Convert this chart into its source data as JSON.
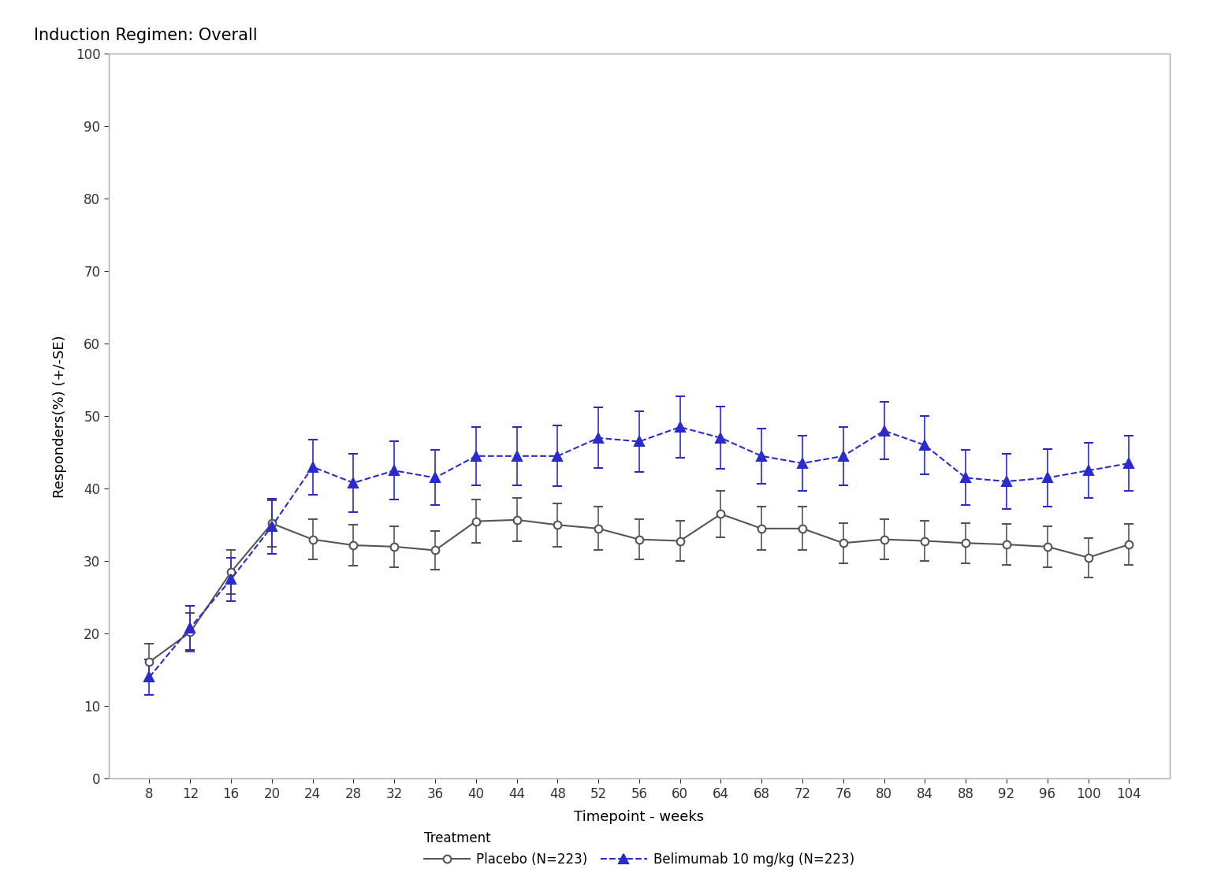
{
  "title": "Induction Regimen: Overall",
  "xlabel": "Timepoint - weeks",
  "ylabel": "Responders(%) (+/-SE)",
  "legend_title": "Treatment",
  "xlim": [
    4,
    108
  ],
  "ylim": [
    0,
    100
  ],
  "yticks": [
    0,
    10,
    20,
    30,
    40,
    50,
    60,
    70,
    80,
    90,
    100
  ],
  "xticks": [
    8,
    12,
    16,
    20,
    24,
    28,
    32,
    36,
    40,
    44,
    48,
    52,
    56,
    60,
    64,
    68,
    72,
    76,
    80,
    84,
    88,
    92,
    96,
    100,
    104
  ],
  "placebo": {
    "label": "Placebo (N=223)",
    "color": "#555555",
    "marker": "o",
    "linestyle": "-",
    "weeks": [
      8,
      12,
      16,
      20,
      24,
      28,
      32,
      36,
      40,
      44,
      48,
      52,
      56,
      60,
      64,
      68,
      72,
      76,
      80,
      84,
      88,
      92,
      96,
      100,
      104
    ],
    "values": [
      16.1,
      20.2,
      28.5,
      35.2,
      33.0,
      32.2,
      32.0,
      31.5,
      35.5,
      35.7,
      35.0,
      34.5,
      33.0,
      32.8,
      36.5,
      34.5,
      34.5,
      32.5,
      33.0,
      32.8,
      32.5,
      32.3,
      32.0,
      30.5,
      32.3
    ],
    "se": [
      2.5,
      2.7,
      3.0,
      3.2,
      2.8,
      2.8,
      2.8,
      2.7,
      3.0,
      3.0,
      3.0,
      3.0,
      2.8,
      2.8,
      3.2,
      3.0,
      3.0,
      2.8,
      2.8,
      2.8,
      2.8,
      2.8,
      2.8,
      2.7,
      2.8
    ]
  },
  "belimumab": {
    "label": "Belimumab 10 mg/kg (N=223)",
    "color": "#2b2bcc",
    "marker": "^",
    "linestyle": "--",
    "weeks": [
      8,
      12,
      16,
      20,
      24,
      28,
      32,
      36,
      40,
      44,
      48,
      52,
      56,
      60,
      64,
      68,
      72,
      76,
      80,
      84,
      88,
      92,
      96,
      100,
      104
    ],
    "values": [
      14.0,
      20.8,
      27.5,
      34.8,
      43.0,
      40.8,
      42.5,
      41.5,
      44.5,
      44.5,
      44.5,
      47.0,
      46.5,
      48.5,
      47.0,
      44.5,
      43.5,
      44.5,
      48.0,
      46.0,
      41.5,
      41.0,
      41.5,
      42.5,
      43.5
    ],
    "se": [
      2.4,
      3.0,
      3.0,
      3.8,
      3.8,
      4.0,
      4.0,
      3.8,
      4.0,
      4.0,
      4.2,
      4.2,
      4.2,
      4.2,
      4.3,
      3.8,
      3.8,
      4.0,
      4.0,
      4.0,
      3.8,
      3.8,
      4.0,
      3.8,
      3.8
    ]
  },
  "background_color": "#ffffff",
  "spine_color": "#aaaaaa",
  "title_fontsize": 15,
  "label_fontsize": 13,
  "tick_fontsize": 12,
  "legend_fontsize": 12
}
